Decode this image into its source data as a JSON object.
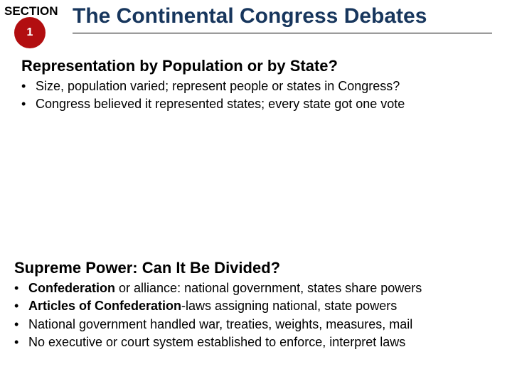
{
  "colors": {
    "circle_bg": "#b20e10",
    "circle_text": "#ffffff",
    "title_text": "#17365d",
    "hr_color": "#000000",
    "body_text": "#000000"
  },
  "section_label": "SECTION",
  "section_number": "1",
  "title": "The Continental Congress Debates",
  "block1": {
    "heading": "Representation by Population or by State?",
    "bullets": [
      {
        "prefix": "•  ",
        "text": "Size, population varied; represent people or states in Congress?"
      },
      {
        "prefix": "•  ",
        "text": "Congress believed it represented states; every state got one vote"
      }
    ]
  },
  "block2": {
    "heading": "Supreme Power: Can It Be Divided?",
    "bullets": [
      {
        "prefix": "•  ",
        "bold": "Confederation",
        "rest": " or alliance: national government, states share powers"
      },
      {
        "prefix": "•  ",
        "bold": "Articles of Confederation",
        "rest": "-laws assigning national, state powers"
      },
      {
        "prefix": "•  ",
        "bold": "",
        "rest": "National government handled war, treaties, weights, measures, mail"
      },
      {
        "prefix": "•  ",
        "bold": "",
        "rest": "No executive or court system established to enforce, interpret laws"
      }
    ]
  }
}
